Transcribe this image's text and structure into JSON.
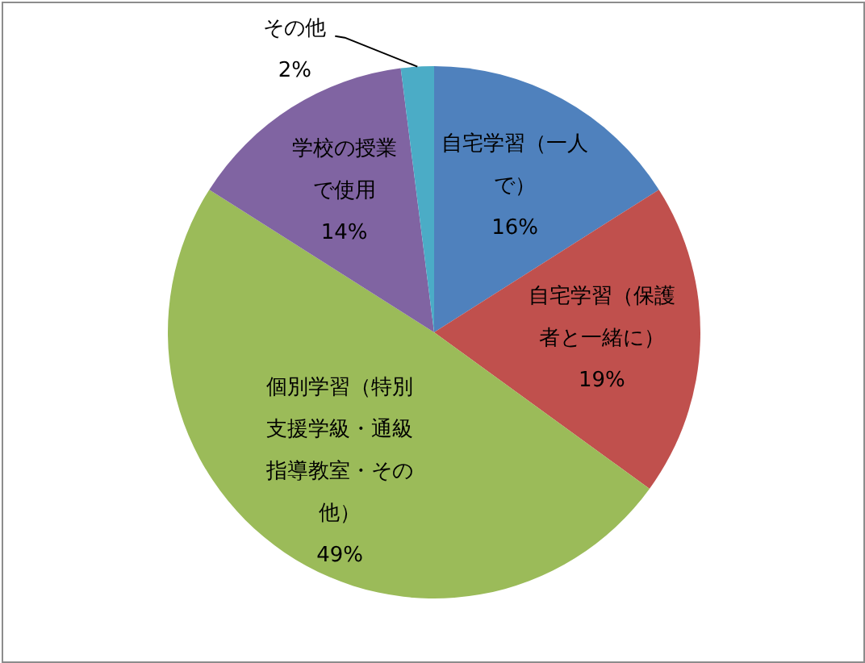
{
  "chart_data": {
    "type": "pie",
    "categories": [
      "自宅学習（一人で）",
      "自宅学習（保護者と一緒に）",
      "個別学習（特別支援学級・通級指導教室・その他）",
      "学校の授業で使用",
      "その他"
    ],
    "values": [
      16,
      19,
      49,
      14,
      2
    ],
    "colors": [
      "#4f81bd",
      "#c0504d",
      "#9bbb59",
      "#8064a2",
      "#4bacc6"
    ],
    "value_labels": [
      "16%",
      "19%",
      "49%",
      "14%",
      "2%"
    ]
  }
}
